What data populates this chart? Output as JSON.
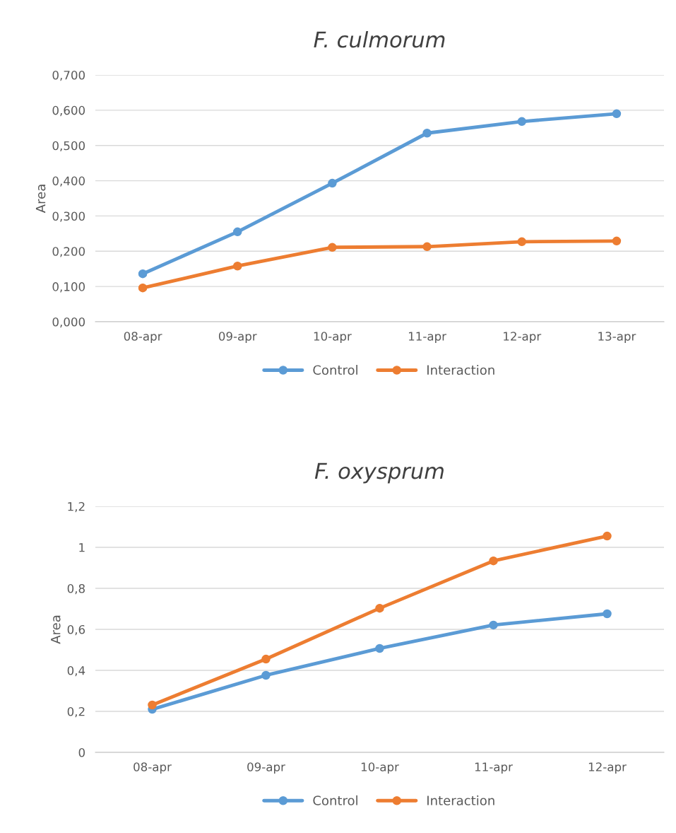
{
  "chart_data": [
    {
      "type": "line",
      "title": "F. culmorum",
      "ylabel": "Area",
      "categories": [
        "08-apr",
        "09-apr",
        "10-apr",
        "11-apr",
        "12-apr",
        "13-apr"
      ],
      "series": [
        {
          "name": "Control",
          "color": "#5b9bd5",
          "values": [
            0.136,
            0.255,
            0.393,
            0.535,
            0.568,
            0.59
          ]
        },
        {
          "name": "Interaction",
          "color": "#ed7d31",
          "values": [
            0.096,
            0.158,
            0.211,
            0.213,
            0.227,
            0.229
          ]
        }
      ],
      "ylim": [
        0,
        0.7
      ],
      "yticks": [
        {
          "value": 0,
          "label": "0,000"
        },
        {
          "value": 0.1,
          "label": "0,100"
        },
        {
          "value": 0.2,
          "label": "0,200"
        },
        {
          "value": 0.3,
          "label": "0,300"
        },
        {
          "value": 0.4,
          "label": "0,400"
        },
        {
          "value": 0.5,
          "label": "0,500"
        },
        {
          "value": 0.6,
          "label": "0,600"
        },
        {
          "value": 0.7,
          "label": "0,700"
        }
      ],
      "grid": "y",
      "legend": "bottom",
      "marker": "circle",
      "line_style": "solid"
    },
    {
      "type": "line",
      "title": "F. oxysprum",
      "ylabel": "Area",
      "categories": [
        "08-apr",
        "09-apr",
        "10-apr",
        "11-apr",
        "12-apr"
      ],
      "series": [
        {
          "name": "Control",
          "color": "#5b9bd5",
          "values": [
            0.21,
            0.376,
            0.507,
            0.621,
            0.676
          ]
        },
        {
          "name": "Interaction",
          "color": "#ed7d31",
          "values": [
            0.231,
            0.455,
            0.703,
            0.934,
            1.055
          ]
        }
      ],
      "ylim": [
        0,
        1.2
      ],
      "yticks": [
        0,
        {
          "value": 0.2,
          "label": "0,2"
        },
        {
          "value": 0.4,
          "label": "0,4"
        },
        {
          "value": 0.6,
          "label": "0,6"
        },
        {
          "value": 0.8,
          "label": "0,8"
        },
        1,
        {
          "value": 1.2,
          "label": "1,2"
        }
      ],
      "grid": "y",
      "legend": "bottom",
      "marker": "circle",
      "line_style": "solid"
    }
  ]
}
